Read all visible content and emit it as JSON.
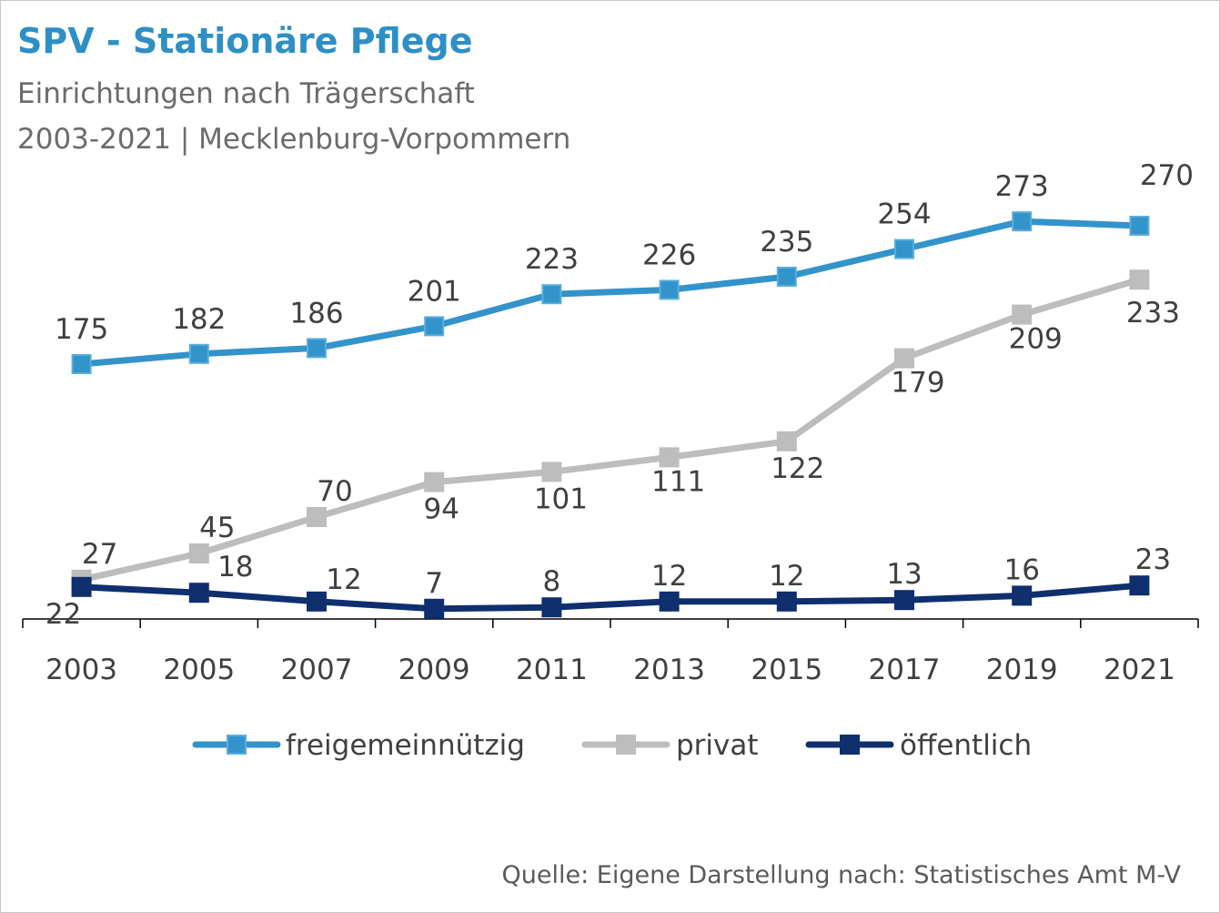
{
  "header": {
    "title": "SPV - Stationäre Pflege",
    "subtitle_1": "Einrichtungen nach Trägerschaft",
    "subtitle_2": "2003-2021 | Mecklenburg-Vorpommern"
  },
  "footer": {
    "source": "Quelle: Eigene Darstellung nach: Statistisches Amt M-V"
  },
  "colors": {
    "freigemeinnuetzig": "#3393cb",
    "privat": "#bdbdbd",
    "oeffentlich": "#0f2f6e",
    "label_text": "#404040",
    "axis": "#000000"
  },
  "chart_data": {
    "type": "line",
    "title": "SPV - Stationäre Pflege",
    "x": [
      "2003",
      "2005",
      "2007",
      "2009",
      "2011",
      "2013",
      "2015",
      "2017",
      "2019",
      "2021"
    ],
    "ylim": [
      0,
      300
    ],
    "grid": false,
    "legend_position": "bottom",
    "series": [
      {
        "name": "freigemeinnützig",
        "values": [
          175,
          182,
          186,
          201,
          223,
          226,
          235,
          254,
          273,
          270
        ],
        "label_position": "above"
      },
      {
        "name": "privat",
        "values": [
          27,
          45,
          70,
          94,
          101,
          111,
          122,
          179,
          209,
          233
        ],
        "label_position": "mixed"
      },
      {
        "name": "öffentlich",
        "values": [
          22,
          18,
          12,
          7,
          8,
          12,
          12,
          13,
          16,
          23
        ],
        "label_position": "mixed"
      }
    ]
  }
}
